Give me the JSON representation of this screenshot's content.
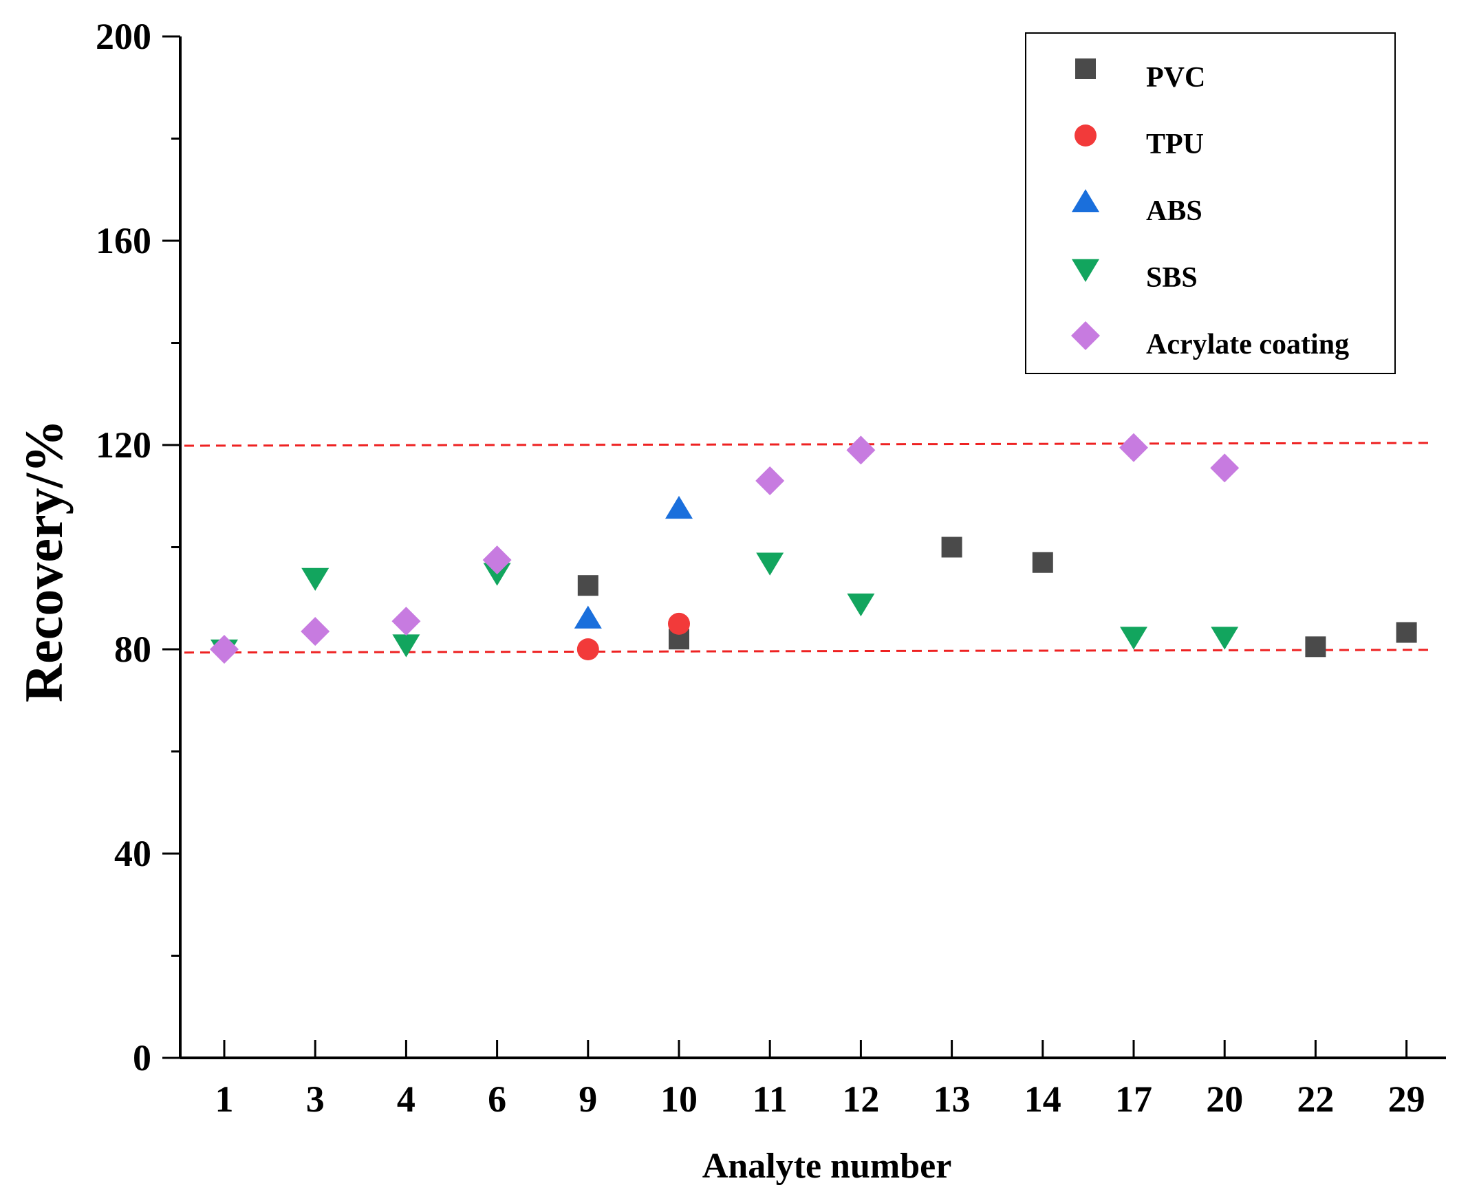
{
  "chart_data": {
    "type": "scatter",
    "title": "",
    "xlabel": "Analyte number",
    "ylabel": "Recovery/%",
    "categories": [
      "1",
      "3",
      "4",
      "6",
      "9",
      "10",
      "11",
      "12",
      "13",
      "14",
      "17",
      "20",
      "22",
      "29"
    ],
    "ylim": [
      0,
      200
    ],
    "yticks": [
      0,
      40,
      80,
      120,
      160,
      200
    ],
    "grid": false,
    "legend_position": "top-right",
    "reference_lines": [
      {
        "name": "upper-limit",
        "y": 120,
        "color": "#ee2222",
        "style": "dashed"
      },
      {
        "name": "lower-limit",
        "y": 79.5,
        "color": "#ee2222",
        "style": "dashed"
      }
    ],
    "series": [
      {
        "name": "PVC",
        "marker": "square",
        "color": "#4a4a4a",
        "points": [
          [
            "9",
            92.5
          ],
          [
            "10",
            82
          ],
          [
            "13",
            100
          ],
          [
            "14",
            97
          ],
          [
            "22",
            80.5
          ],
          [
            "29",
            83.3
          ]
        ]
      },
      {
        "name": "TPU",
        "marker": "circle",
        "color": "#f23a3a",
        "points": [
          [
            "9",
            80
          ],
          [
            "10",
            85
          ]
        ]
      },
      {
        "name": "ABS",
        "marker": "triangle-up",
        "color": "#1a6fdc",
        "points": [
          [
            "9",
            86
          ],
          [
            "10",
            107.5
          ]
        ]
      },
      {
        "name": "SBS",
        "marker": "triangle-down",
        "color": "#12a55e",
        "points": [
          [
            "1",
            80
          ],
          [
            "3",
            94
          ],
          [
            "4",
            81
          ],
          [
            "6",
            95
          ],
          [
            "11",
            97
          ],
          [
            "12",
            89
          ],
          [
            "17",
            82.5
          ],
          [
            "20",
            82.5
          ]
        ]
      },
      {
        "name": "Acrylate coating",
        "marker": "diamond",
        "color": "#c77be0",
        "points": [
          [
            "1",
            80
          ],
          [
            "3",
            83.5
          ],
          [
            "4",
            85.5
          ],
          [
            "6",
            97.5
          ],
          [
            "11",
            113
          ],
          [
            "12",
            119
          ],
          [
            "17",
            119.5
          ],
          [
            "20",
            115.5
          ]
        ]
      }
    ]
  }
}
